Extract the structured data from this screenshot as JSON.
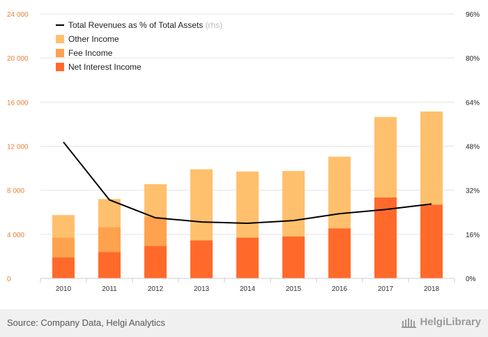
{
  "chart_data": {
    "type": "bar",
    "stacked": true,
    "categories": [
      "2010",
      "2011",
      "2012",
      "2013",
      "2014",
      "2015",
      "2016",
      "2017",
      "2018"
    ],
    "series": [
      {
        "name": "Net Interest Income",
        "color": "#ff6a2b",
        "values": [
          1900,
          2400,
          2950,
          3450,
          3700,
          3800,
          4550,
          7350,
          6700
        ]
      },
      {
        "name": "Fee Income",
        "color": "#ffa24d",
        "values": [
          1800,
          2250,
          2650,
          0,
          0,
          0,
          0,
          0,
          0
        ]
      },
      {
        "name": "Other Income",
        "color": "#ffc06d",
        "values": [
          2050,
          2550,
          2950,
          6450,
          6000,
          5950,
          6500,
          7300,
          8450
        ]
      }
    ],
    "line": {
      "name": "Total Revenues as % of Total Assets",
      "note": "(rhs)",
      "color": "#000000",
      "values": [
        49.5,
        28.5,
        22,
        20.5,
        20,
        21,
        23.5,
        25,
        27
      ]
    },
    "y_left": {
      "min": 0,
      "max": 24000,
      "ticks": [
        "0",
        "4 000",
        "8 000",
        "12 000",
        "16 000",
        "20 000",
        "24 000"
      ],
      "color": "#f07c33"
    },
    "y_right": {
      "min": 0,
      "max": 96,
      "ticks": [
        "0%",
        "16%",
        "32%",
        "48%",
        "64%",
        "80%",
        "96%"
      ]
    },
    "grid": true,
    "legend_position": "top-left"
  },
  "footer": {
    "source": "Source: Company Data, Helgi Analytics",
    "brand": "HelgiLibrary"
  }
}
